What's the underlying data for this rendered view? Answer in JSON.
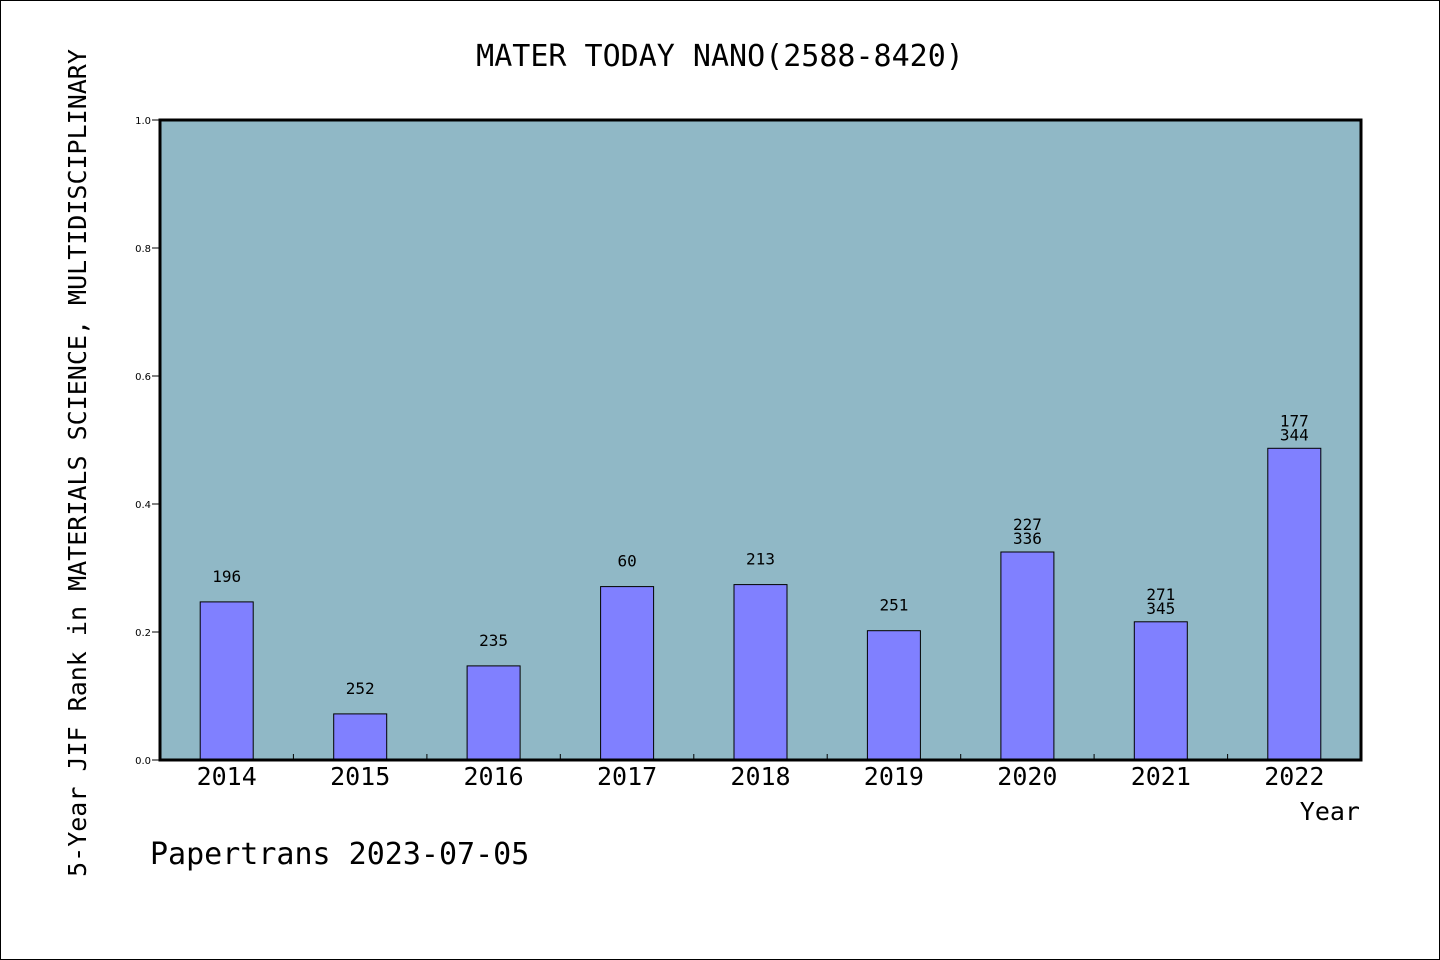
{
  "chart_data": {
    "type": "bar",
    "title": "MATER TODAY NANO(2588-8420)",
    "xlabel": "Year",
    "ylabel": "5-Year JIF Rank in MATERIALS SCIENCE, MULTIDISCIPLINARY",
    "categories": [
      "2014",
      "2015",
      "2016",
      "2017",
      "2018",
      "2019",
      "2020",
      "2021",
      "2022"
    ],
    "values": [
      0.247,
      0.072,
      0.147,
      0.271,
      0.274,
      0.202,
      0.325,
      0.216,
      0.487
    ],
    "data_labels": [
      [
        "196"
      ],
      [
        "252"
      ],
      [
        "235"
      ],
      [
        "60"
      ],
      [
        "213"
      ],
      [
        "251"
      ],
      [
        "227",
        "336"
      ],
      [
        "271",
        "345"
      ],
      [
        "177",
        "344"
      ]
    ],
    "ylim": [
      0,
      1.0
    ],
    "yticks": [
      "0.0",
      "0.2",
      "0.4",
      "0.6",
      "0.8",
      "1.0"
    ],
    "grid": false,
    "colors": {
      "bar": "#8080ff",
      "plot_background": "#90b8c6",
      "axis": "#000000"
    }
  },
  "footer": "Papertrans 2023-07-05"
}
